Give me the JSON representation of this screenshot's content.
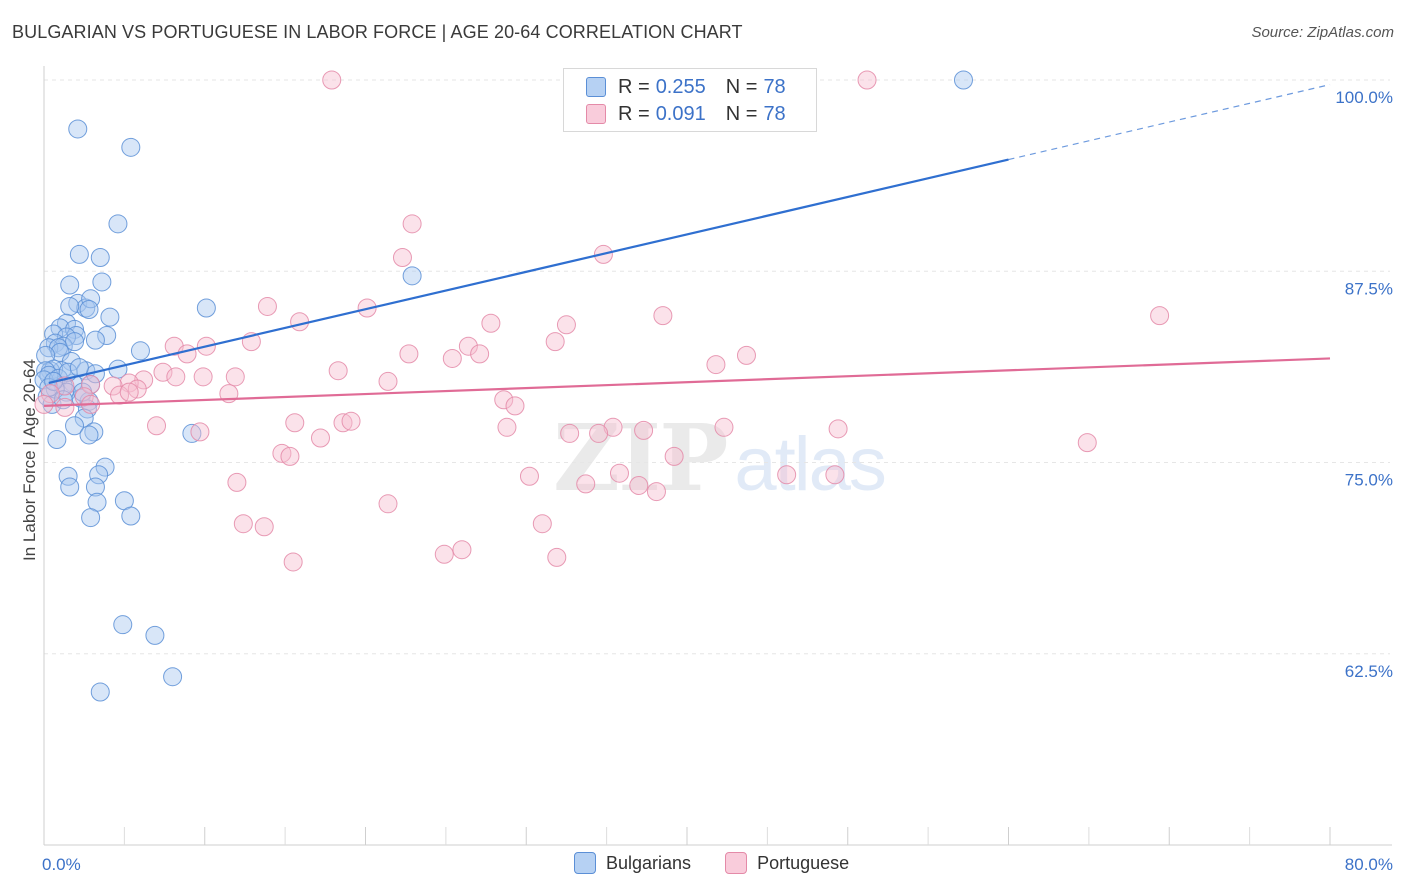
{
  "header": {
    "title": "BULGARIAN VS PORTUGUESE IN LABOR FORCE | AGE 20-64 CORRELATION CHART",
    "source": "Source: ZipAtlas.com"
  },
  "watermark": {
    "zip": "ZIP",
    "atlas": "atlas"
  },
  "legend_top": {
    "rows": [
      {
        "r_label": "R =",
        "r_value": "0.255",
        "n_label": "N =",
        "n_value": "78"
      },
      {
        "r_label": "R =",
        "r_value": "0.091",
        "n_label": "N =",
        "n_value": "78"
      }
    ]
  },
  "legend_bottom": {
    "items": [
      {
        "label": "Bulgarians"
      },
      {
        "label": "Portuguese"
      }
    ]
  },
  "colors": {
    "bulgarians_fill": "#a8c8f0",
    "bulgarians_stroke": "#5b8fd6",
    "bulgarians_line": "#2f6fd0",
    "portuguese_fill": "#f7bfd0",
    "portuguese_stroke": "#e48aa8",
    "portuguese_line": "#e06b96",
    "tick_label": "#3c72c8",
    "grid": "#e6e6e6"
  },
  "chart_data": {
    "type": "scatter",
    "title": "BULGARIAN VS PORTUGUESE IN LABOR FORCE | AGE 20-64 CORRELATION CHART",
    "xlabel": "",
    "ylabel": "In Labor Force | Age 20-64",
    "xlim": [
      0,
      80
    ],
    "ylim": [
      50,
      101
    ],
    "x_tick_labels": [
      {
        "value": 0,
        "label": "0.0%"
      },
      {
        "value": 80,
        "label": "80.0%"
      }
    ],
    "y_tick_labels": [
      {
        "value": 62.5,
        "label": "62.5%"
      },
      {
        "value": 75,
        "label": "75.0%"
      },
      {
        "value": 87.5,
        "label": "87.5%"
      },
      {
        "value": 100,
        "label": "100.0%"
      }
    ],
    "grid": true,
    "series": [
      {
        "name": "Bulgarians",
        "r": 0.255,
        "n": 78,
        "trend": {
          "x_start": 0.3,
          "y_start": 80.2,
          "x_solid_end": 60,
          "y_solid_end": 94.8,
          "x_dash_end": 80,
          "y_dash_end": 99.7
        },
        "points": [
          [
            2.1,
            96.8
          ],
          [
            5.4,
            95.6
          ],
          [
            57.2,
            100.0
          ],
          [
            4.6,
            90.6
          ],
          [
            2.2,
            88.6
          ],
          [
            3.5,
            88.4
          ],
          [
            1.6,
            86.6
          ],
          [
            3.6,
            86.8
          ],
          [
            2.1,
            85.4
          ],
          [
            2.6,
            85.1
          ],
          [
            2.9,
            85.7
          ],
          [
            1.6,
            85.2
          ],
          [
            10.1,
            85.1
          ],
          [
            2.8,
            85.0
          ],
          [
            4.1,
            84.5
          ],
          [
            1.4,
            84.1
          ],
          [
            1.0,
            83.8
          ],
          [
            1.9,
            83.7
          ],
          [
            2.0,
            83.3
          ],
          [
            0.6,
            83.4
          ],
          [
            1.4,
            83.2
          ],
          [
            3.9,
            83.3
          ],
          [
            3.2,
            83.0
          ],
          [
            0.7,
            82.8
          ],
          [
            1.2,
            82.6
          ],
          [
            0.3,
            82.5
          ],
          [
            0.9,
            82.5
          ],
          [
            1.0,
            82.2
          ],
          [
            6.0,
            82.3
          ],
          [
            0.1,
            82.0
          ],
          [
            1.7,
            81.6
          ],
          [
            1.1,
            81.0
          ],
          [
            2.6,
            81.0
          ],
          [
            0.4,
            81.0
          ],
          [
            0.6,
            81.1
          ],
          [
            4.6,
            81.1
          ],
          [
            0.1,
            81.0
          ],
          [
            0.3,
            80.7
          ],
          [
            0.0,
            80.4
          ],
          [
            0.9,
            80.5
          ],
          [
            1.8,
            80.2
          ],
          [
            2.9,
            80.1
          ],
          [
            3.2,
            80.8
          ],
          [
            1.2,
            80.0
          ],
          [
            1.4,
            79.6
          ],
          [
            0.2,
            79.3
          ],
          [
            2.3,
            79.2
          ],
          [
            2.8,
            79.0
          ],
          [
            0.5,
            78.8
          ],
          [
            2.7,
            78.5
          ],
          [
            2.5,
            77.9
          ],
          [
            1.9,
            77.4
          ],
          [
            3.1,
            77.0
          ],
          [
            9.2,
            76.9
          ],
          [
            2.8,
            76.8
          ],
          [
            0.8,
            76.5
          ],
          [
            22.9,
            87.2
          ],
          [
            3.8,
            74.7
          ],
          [
            1.5,
            74.1
          ],
          [
            3.4,
            74.2
          ],
          [
            1.6,
            73.4
          ],
          [
            3.2,
            73.4
          ],
          [
            3.3,
            72.4
          ],
          [
            5.0,
            72.5
          ],
          [
            2.9,
            71.4
          ],
          [
            5.4,
            71.5
          ],
          [
            4.9,
            64.4
          ],
          [
            6.9,
            63.7
          ],
          [
            8.0,
            61.0
          ],
          [
            3.5,
            60.0
          ],
          [
            0.7,
            79.8
          ],
          [
            1.5,
            80.9
          ],
          [
            2.4,
            79.6
          ],
          [
            0.3,
            79.9
          ],
          [
            1.9,
            82.9
          ],
          [
            2.2,
            81.2
          ],
          [
            0.6,
            80.3
          ],
          [
            1.2,
            79.1
          ]
        ]
      },
      {
        "name": "Portuguese",
        "r": 0.091,
        "n": 78,
        "trend": {
          "x_start": 0.0,
          "y_start": 78.7,
          "x_end": 80,
          "y_end": 81.8
        },
        "points": [
          [
            17.9,
            100.0
          ],
          [
            51.2,
            100.0
          ],
          [
            22.9,
            90.6
          ],
          [
            22.3,
            88.4
          ],
          [
            34.8,
            88.6
          ],
          [
            13.9,
            85.2
          ],
          [
            20.1,
            85.1
          ],
          [
            15.9,
            84.2
          ],
          [
            27.8,
            84.1
          ],
          [
            32.5,
            84.0
          ],
          [
            38.5,
            84.6
          ],
          [
            69.4,
            84.6
          ],
          [
            12.9,
            82.9
          ],
          [
            10.1,
            82.6
          ],
          [
            8.1,
            82.6
          ],
          [
            31.8,
            82.9
          ],
          [
            26.4,
            82.6
          ],
          [
            27.1,
            82.1
          ],
          [
            22.7,
            82.1
          ],
          [
            25.4,
            81.8
          ],
          [
            8.9,
            82.1
          ],
          [
            43.7,
            82.0
          ],
          [
            41.8,
            81.4
          ],
          [
            18.3,
            81.0
          ],
          [
            7.4,
            80.9
          ],
          [
            8.2,
            80.6
          ],
          [
            9.9,
            80.6
          ],
          [
            11.9,
            80.6
          ],
          [
            6.2,
            80.4
          ],
          [
            5.3,
            80.2
          ],
          [
            21.4,
            80.3
          ],
          [
            2.9,
            80.1
          ],
          [
            4.3,
            80.0
          ],
          [
            5.8,
            79.8
          ],
          [
            1.3,
            80.0
          ],
          [
            11.5,
            79.5
          ],
          [
            4.7,
            79.4
          ],
          [
            5.3,
            79.6
          ],
          [
            2.5,
            79.3
          ],
          [
            0.4,
            79.5
          ],
          [
            28.6,
            79.1
          ],
          [
            29.3,
            78.7
          ],
          [
            2.9,
            78.8
          ],
          [
            1.3,
            78.6
          ],
          [
            0.0,
            78.8
          ],
          [
            7.0,
            77.4
          ],
          [
            15.6,
            77.6
          ],
          [
            18.6,
            77.6
          ],
          [
            19.1,
            77.7
          ],
          [
            28.8,
            77.3
          ],
          [
            37.3,
            77.1
          ],
          [
            35.4,
            77.3
          ],
          [
            42.3,
            77.3
          ],
          [
            49.4,
            77.2
          ],
          [
            17.2,
            76.6
          ],
          [
            9.7,
            77.0
          ],
          [
            32.7,
            76.9
          ],
          [
            34.5,
            76.9
          ],
          [
            64.9,
            76.3
          ],
          [
            14.8,
            75.6
          ],
          [
            15.3,
            75.4
          ],
          [
            39.2,
            75.4
          ],
          [
            30.2,
            74.1
          ],
          [
            35.8,
            74.3
          ],
          [
            46.2,
            74.2
          ],
          [
            49.2,
            74.2
          ],
          [
            12.0,
            73.7
          ],
          [
            33.7,
            73.6
          ],
          [
            37.0,
            73.5
          ],
          [
            38.1,
            73.1
          ],
          [
            21.4,
            72.3
          ],
          [
            31.0,
            71.0
          ],
          [
            12.4,
            71.0
          ],
          [
            13.7,
            70.8
          ],
          [
            24.9,
            69.0
          ],
          [
            26.0,
            69.3
          ],
          [
            31.9,
            68.8
          ],
          [
            15.5,
            68.5
          ]
        ]
      }
    ]
  }
}
